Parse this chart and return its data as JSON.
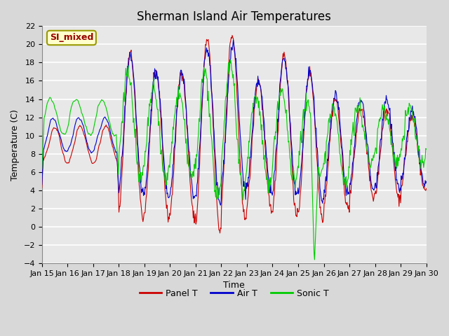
{
  "title": "Sherman Island Air Temperatures",
  "xlabel": "Time",
  "ylabel": "Temperature (C)",
  "ylim": [
    -4,
    22
  ],
  "yticks": [
    -4,
    -2,
    0,
    2,
    4,
    6,
    8,
    10,
    12,
    14,
    16,
    18,
    20,
    22
  ],
  "x_labels": [
    "Jan 15",
    "Jan 16",
    "Jan 17",
    "Jan 18",
    "Jan 19",
    "Jan 20",
    "Jan 21",
    "Jan 22",
    "Jan 23",
    "Jan 24",
    "Jan 25",
    "Jan 26",
    "Jan 27",
    "Jan 28",
    "Jan 29",
    "Jan 30"
  ],
  "panel_color": "#cc0000",
  "air_color": "#0000cc",
  "sonic_color": "#00cc00",
  "fig_bg_color": "#d8d8d8",
  "plot_bg_color": "#e8e8e8",
  "annotation_text": "SI_mixed",
  "annotation_bg": "#ffffcc",
  "annotation_fg": "#990000",
  "legend_labels": [
    "Panel T",
    "Air T",
    "Sonic T"
  ],
  "title_fontsize": 12,
  "axis_fontsize": 9,
  "tick_fontsize": 8,
  "n_points": 720,
  "seed": 42
}
